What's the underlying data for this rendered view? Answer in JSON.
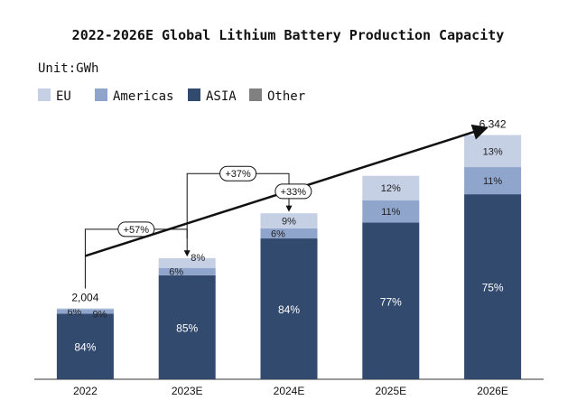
{
  "chart_data": {
    "type": "bar",
    "stacked": true,
    "title": "2022-2026E Global Lithium Battery Production Capacity",
    "unit_label": "Unit:GWh",
    "categories": [
      "2022",
      "2023E",
      "2024E",
      "2025E",
      "2026E"
    ],
    "totals": [
      2004,
      3146,
      4310,
      5230,
      6342
    ],
    "total_labels": [
      "2,004",
      "",
      "",
      "",
      "6,342"
    ],
    "series": [
      {
        "name": "EU",
        "color": "#c5d0e4",
        "percent": [
          0.01,
          0.08,
          0.09,
          0.12,
          0.13
        ],
        "labels": [
          "",
          "8%",
          "9%",
          "12%",
          "13%"
        ]
      },
      {
        "name": "Americas",
        "color": "#8fa5cb",
        "percent": [
          0.06,
          0.06,
          0.06,
          0.11,
          0.11
        ],
        "labels": [
          "6%",
          "6%",
          "6%",
          "11%",
          "11%"
        ]
      },
      {
        "name": "ASIA",
        "color": "#324a6e",
        "percent": [
          0.84,
          0.85,
          0.84,
          0.77,
          0.75
        ],
        "labels": [
          "84%",
          "85%",
          "84%",
          "77%",
          "75%"
        ]
      },
      {
        "name": "Other",
        "color": "#808080",
        "percent": [
          0.0,
          0.0,
          0.0,
          0.0,
          0.0
        ],
        "labels": [
          "",
          "",
          "",
          "",
          ""
        ]
      }
    ],
    "extra_labels": [
      {
        "category": "2022",
        "text": "9%"
      }
    ],
    "growth_annotations": [
      {
        "text": "+57%",
        "from": "2022",
        "to": "2023E"
      },
      {
        "text": "+37%",
        "from": "2023E",
        "to": "2024E"
      },
      {
        "text": "+33%",
        "from": "2022",
        "to": "2026E",
        "trend_arrow": true
      }
    ],
    "ylim": [
      0,
      6500
    ],
    "legend_position": "top-left",
    "grid": false
  }
}
